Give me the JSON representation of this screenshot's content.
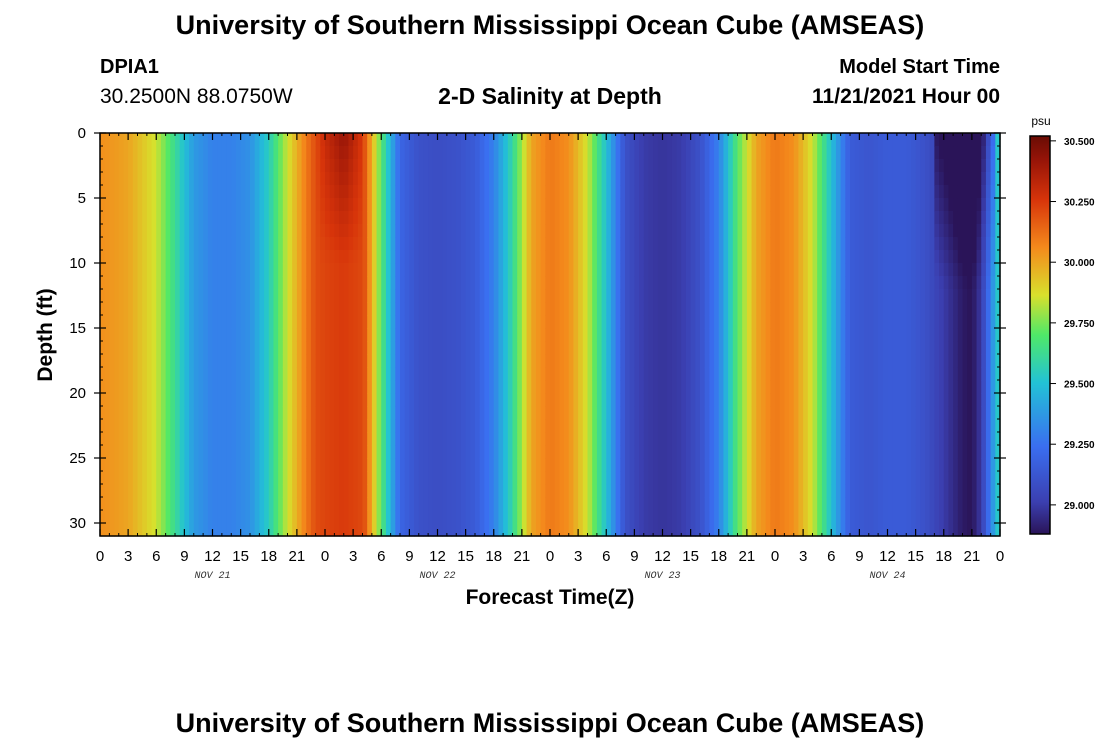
{
  "header": {
    "title": "University of Southern Mississippi Ocean Cube (AMSEAS)",
    "footer_title": "University of Southern Mississippi Ocean Cube (AMSEAS)",
    "station": "DPIA1",
    "coords": "30.2500N  88.0750W",
    "subtitle": "2-D Salinity at Depth",
    "model_start_label": "Model Start Time",
    "model_start_value": "11/21/2021 Hour 00"
  },
  "chart_data": {
    "type": "heatmap",
    "title": "2-D Salinity at Depth",
    "xlabel": "Forecast Time(Z)",
    "ylabel": "Depth (ft)",
    "x_range_hours": [
      0,
      96
    ],
    "ylim": [
      0,
      31
    ],
    "y_ticks": [
      "0",
      "5",
      "10",
      "15",
      "20",
      "25",
      "30"
    ],
    "y_tick_values": [
      0,
      5,
      10,
      15,
      20,
      25,
      30
    ],
    "x_tick_labels": [
      "0",
      "3",
      "6",
      "9",
      "12",
      "15",
      "18",
      "21",
      "0",
      "3",
      "6",
      "9",
      "12",
      "15",
      "18",
      "21",
      "0",
      "3",
      "6",
      "9",
      "12",
      "15",
      "18",
      "21",
      "0",
      "3",
      "6",
      "9",
      "12",
      "15",
      "18",
      "21",
      "0"
    ],
    "day_labels": [
      "NOV 21",
      "NOV 22",
      "NOV 23",
      "NOV 24"
    ],
    "day_label_hours": [
      12,
      36,
      60,
      84
    ],
    "colorbar": {
      "unit": "psu",
      "min": 28.88,
      "max": 30.52,
      "ticks": [
        "30.500",
        "30.250",
        "30.000",
        "29.750",
        "29.500",
        "29.250",
        "29.000"
      ],
      "tick_values": [
        30.5,
        30.25,
        30.0,
        29.75,
        29.5,
        29.25,
        29.0
      ]
    },
    "surface_salinity_by_hour": {
      "hours": [
        0,
        3,
        6,
        8,
        10,
        12,
        14,
        16,
        18,
        20,
        22,
        24,
        26,
        28,
        30,
        32,
        34,
        36,
        38,
        40,
        42,
        44,
        46,
        48,
        50,
        52,
        54,
        56,
        58,
        60,
        62,
        64,
        66,
        68,
        70,
        72,
        74,
        76,
        78,
        80,
        82,
        84,
        86,
        88,
        90,
        92,
        93,
        94,
        96
      ],
      "values": [
        30.05,
        30.0,
        29.85,
        29.62,
        29.38,
        29.3,
        29.3,
        29.35,
        29.55,
        29.85,
        30.1,
        30.3,
        30.42,
        30.25,
        29.7,
        29.2,
        29.1,
        29.08,
        29.1,
        29.15,
        29.3,
        29.6,
        30.0,
        30.1,
        30.05,
        29.85,
        29.5,
        29.1,
        29.0,
        28.98,
        29.0,
        29.1,
        29.3,
        29.7,
        30.0,
        30.1,
        30.05,
        29.85,
        29.5,
        29.15,
        29.12,
        29.15,
        29.15,
        29.1,
        29.0,
        28.9,
        28.88,
        29.0,
        29.6
      ]
    }
  }
}
